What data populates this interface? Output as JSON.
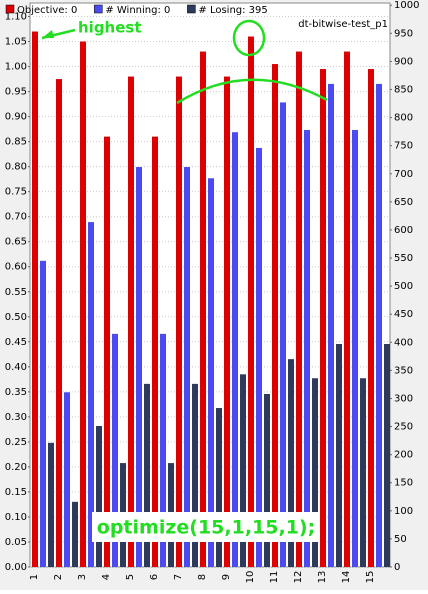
{
  "chart_data": {
    "type": "bar",
    "subtitle": "dt-bitwise-test_p1",
    "annotations": [
      "highest",
      "optimize(15,1,15,1);"
    ],
    "categories": [
      "1",
      "2",
      "3",
      "4",
      "5",
      "6",
      "7",
      "8",
      "9",
      "10",
      "11",
      "12",
      "13",
      "14",
      "15"
    ],
    "series": [
      {
        "name": "Objective: 0",
        "color": "#dd0000",
        "values": [
          1.07,
          0.975,
          1.05,
          0.86,
          0.98,
          0.86,
          0.98,
          1.03,
          0.98,
          1.06,
          1.005,
          1.03,
          0.995,
          1.03,
          0.995
        ]
      },
      {
        "name": "# Winning: 0",
        "color": "#4b4bf0",
        "axis": "y2",
        "values": [
          545,
          311,
          614,
          415,
          712,
          415,
          712,
          692,
          774,
          746,
          827,
          778,
          860,
          778,
          860
        ]
      },
      {
        "name": "# Losing: 395",
        "color": "#2e3a5c",
        "axis": "y2",
        "values": [
          221,
          116,
          251,
          185,
          326,
          185,
          326,
          283,
          343,
          308,
          370,
          336,
          397,
          336,
          397
        ]
      }
    ],
    "ylim": [
      0,
      1.127
    ],
    "yticks": [
      {
        "value": 0,
        "label": "0.00"
      },
      {
        "value": 0.05,
        "label": "0.05"
      },
      {
        "value": 0.1,
        "label": "0.10"
      },
      {
        "value": 0.15,
        "label": "0.15"
      },
      {
        "value": 0.2,
        "label": "0.20"
      },
      {
        "value": 0.25,
        "label": "0.25"
      },
      {
        "value": 0.3,
        "label": "0.30"
      },
      {
        "value": 0.35,
        "label": "0.35"
      },
      {
        "value": 0.4,
        "label": "0.40"
      },
      {
        "value": 0.45,
        "label": "0.45"
      },
      {
        "value": 0.5,
        "label": "0.50"
      },
      {
        "value": 0.55,
        "label": "0.55"
      },
      {
        "value": 0.6,
        "label": "0.60"
      },
      {
        "value": 0.65,
        "label": "0.65"
      },
      {
        "value": 0.7,
        "label": "0.70"
      },
      {
        "value": 0.75,
        "label": "0.75"
      },
      {
        "value": 0.8,
        "label": "0.80"
      },
      {
        "value": 0.85,
        "label": "0.85"
      },
      {
        "value": 0.9,
        "label": "0.90"
      },
      {
        "value": 0.95,
        "label": "0.95"
      },
      {
        "value": 1,
        "label": "1.00"
      },
      {
        "value": 1.05,
        "label": "1.05"
      },
      {
        "value": 1.1,
        "label": "1.10"
      }
    ],
    "y2lim": [
      0,
      1004
    ],
    "y2ticks": [
      0,
      50,
      100,
      150,
      200,
      250,
      300,
      350,
      400,
      450,
      500,
      550,
      600,
      650,
      700,
      750,
      800,
      850,
      900,
      950,
      1000
    ],
    "grid": true
  }
}
